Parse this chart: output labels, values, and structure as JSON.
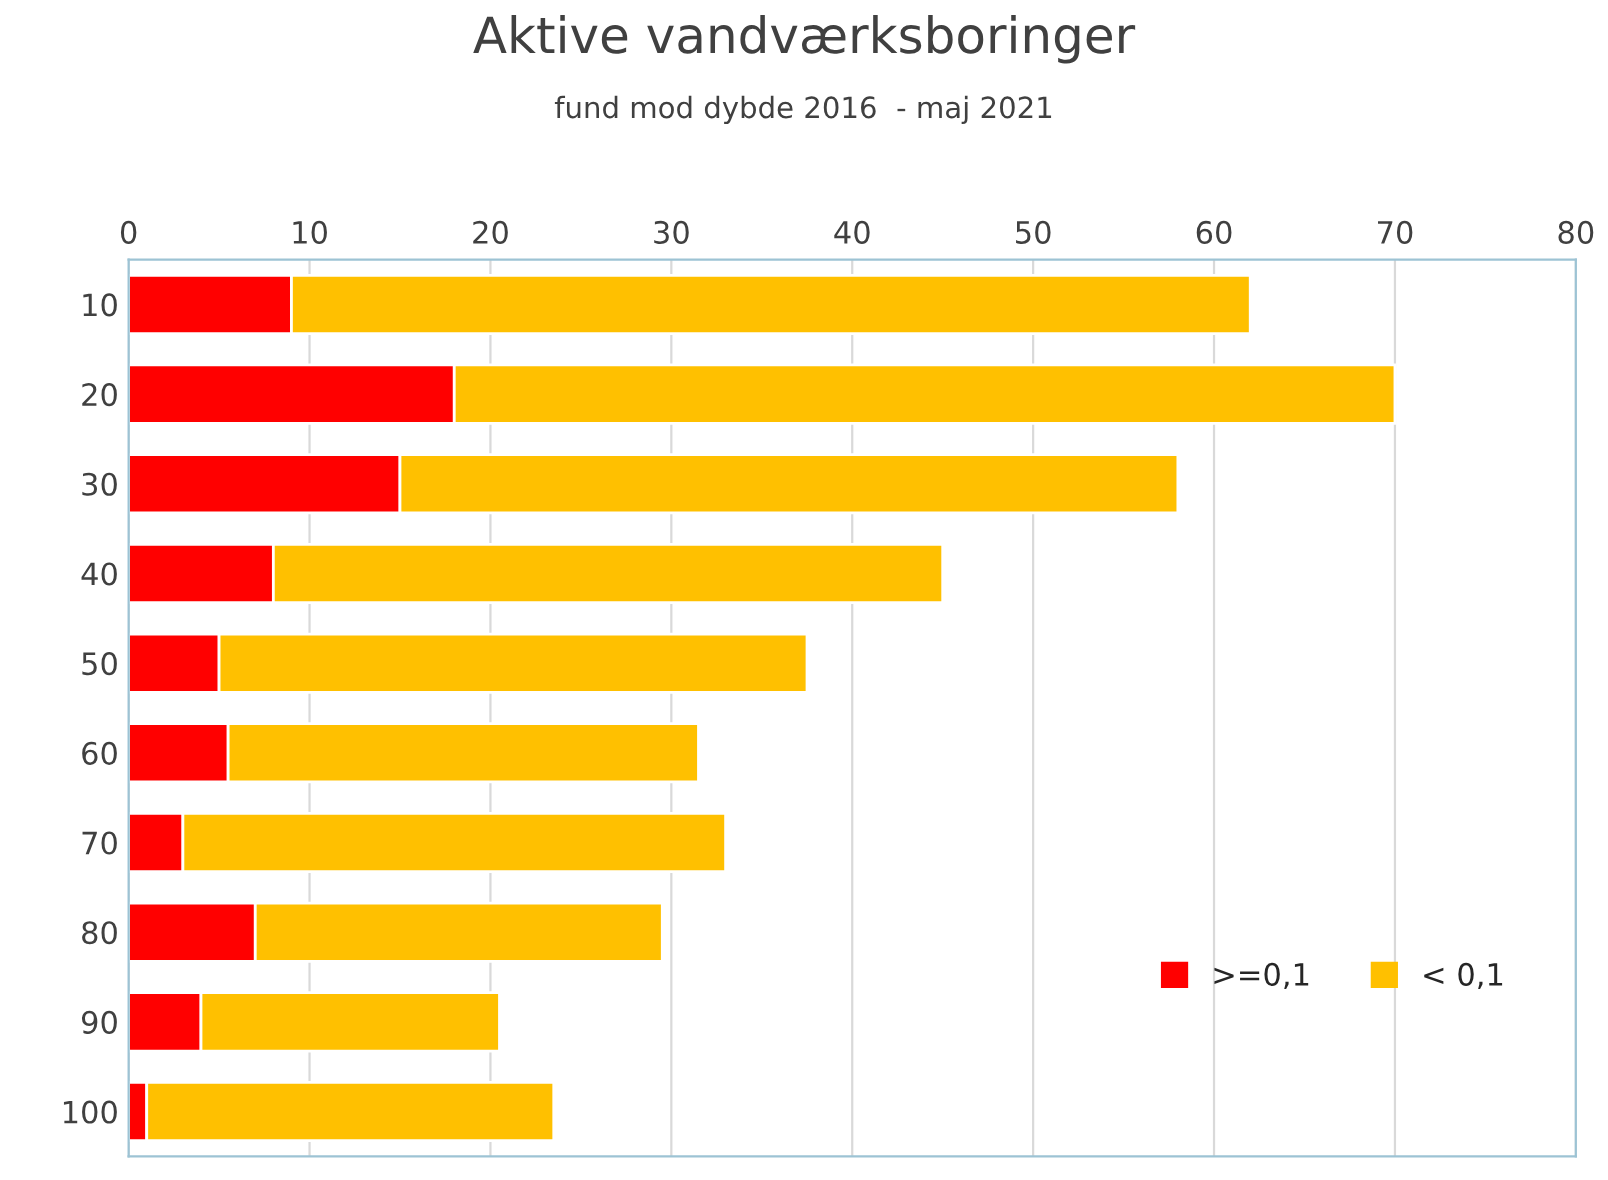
{
  "chart_data": {
    "type": "bar",
    "orientation": "horizontal",
    "stacked": true,
    "title": "Aktive vandværksboringer",
    "subtitle": "fund mod dybde 2016  - maj 2021",
    "categories": [
      "10",
      "20",
      "30",
      "40",
      "50",
      "60",
      "70",
      "80",
      "90",
      "100"
    ],
    "series": [
      {
        "name": ">=0,1",
        "color": "#ff0000",
        "values": [
          9,
          18,
          15,
          8,
          5,
          5.5,
          3,
          7,
          4,
          1
        ]
      },
      {
        "name": "< 0,1",
        "color": "#ffc000",
        "values": [
          53,
          52,
          43,
          37,
          32.5,
          26,
          30,
          22.5,
          16.5,
          22.5
        ]
      }
    ],
    "xlim": [
      0,
      80
    ],
    "xticks": [
      0,
      10,
      20,
      30,
      40,
      50,
      60,
      70,
      80
    ],
    "grid": "x",
    "legend": "bottom right"
  }
}
